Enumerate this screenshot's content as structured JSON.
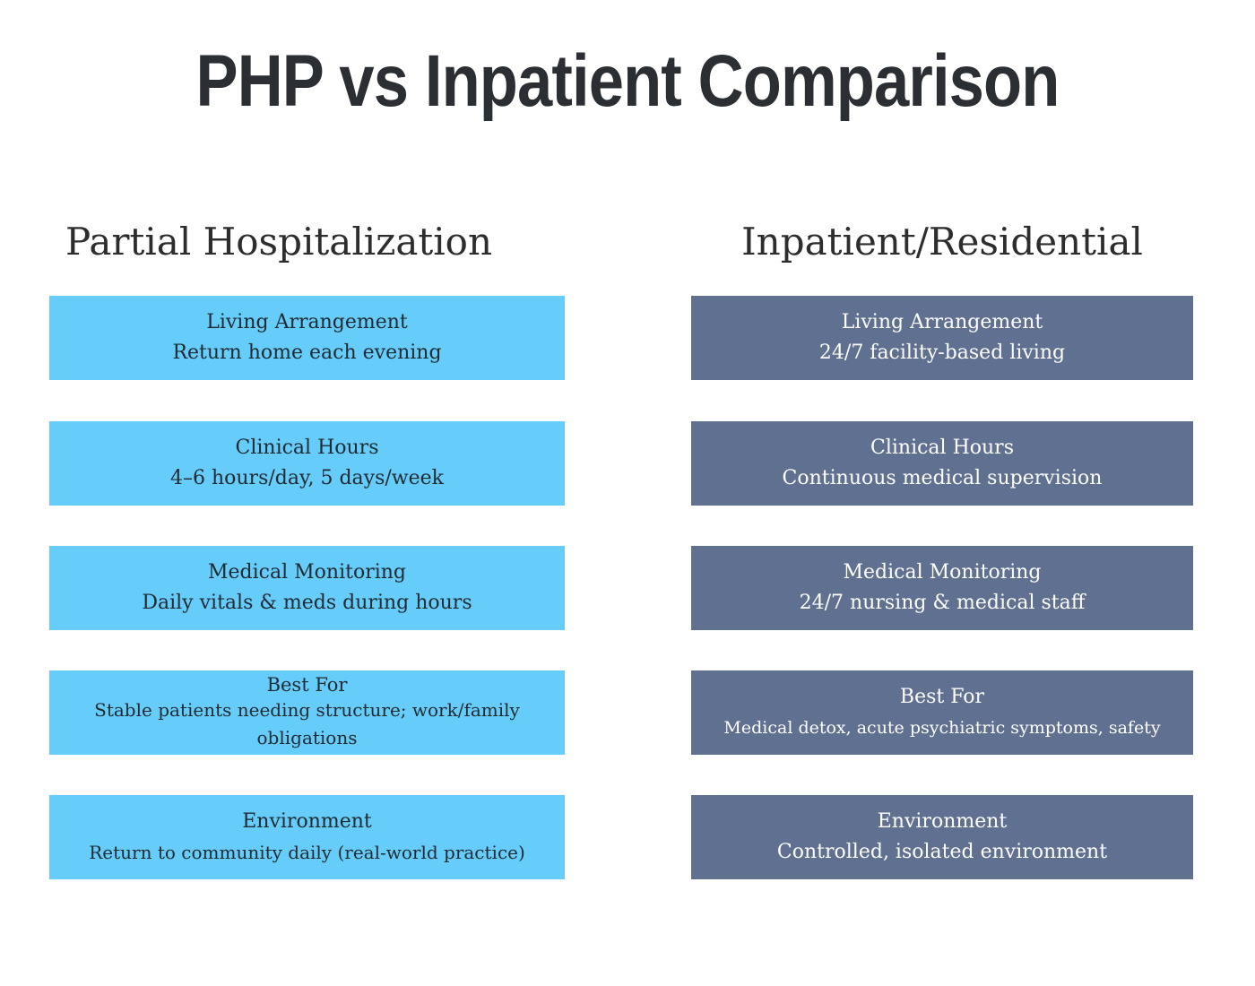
{
  "title": "PHP vs Inpatient Comparison",
  "columns": {
    "php": {
      "heading": "Partial Hospitalization",
      "rows": [
        {
          "label": "Living Arrangement",
          "value": "Return home each evening"
        },
        {
          "label": "Clinical Hours",
          "value": "4–6 hours/day, 5 days/week"
        },
        {
          "label": "Medical Monitoring",
          "value": "Daily vitals & meds during hours"
        },
        {
          "label": "Best For",
          "value": "Stable patients needing structure; work/family obligations"
        },
        {
          "label": "Environment",
          "value": "Return to community daily (real-world practice)"
        }
      ]
    },
    "inpatient": {
      "heading": "Inpatient/Residential",
      "rows": [
        {
          "label": "Living Arrangement",
          "value": "24/7 facility-based living"
        },
        {
          "label": "Clinical Hours",
          "value": "Continuous medical supervision"
        },
        {
          "label": "Medical Monitoring",
          "value": "24/7 nursing & medical staff"
        },
        {
          "label": "Best For",
          "value": "Medical detox, acute psychiatric symptoms, safety"
        },
        {
          "label": "Environment",
          "value": "Controlled, isolated environment"
        }
      ]
    }
  },
  "colors": {
    "php_card": "#66ccf9",
    "inpatient_card": "#5f7091",
    "title_text": "#2b2f33"
  }
}
